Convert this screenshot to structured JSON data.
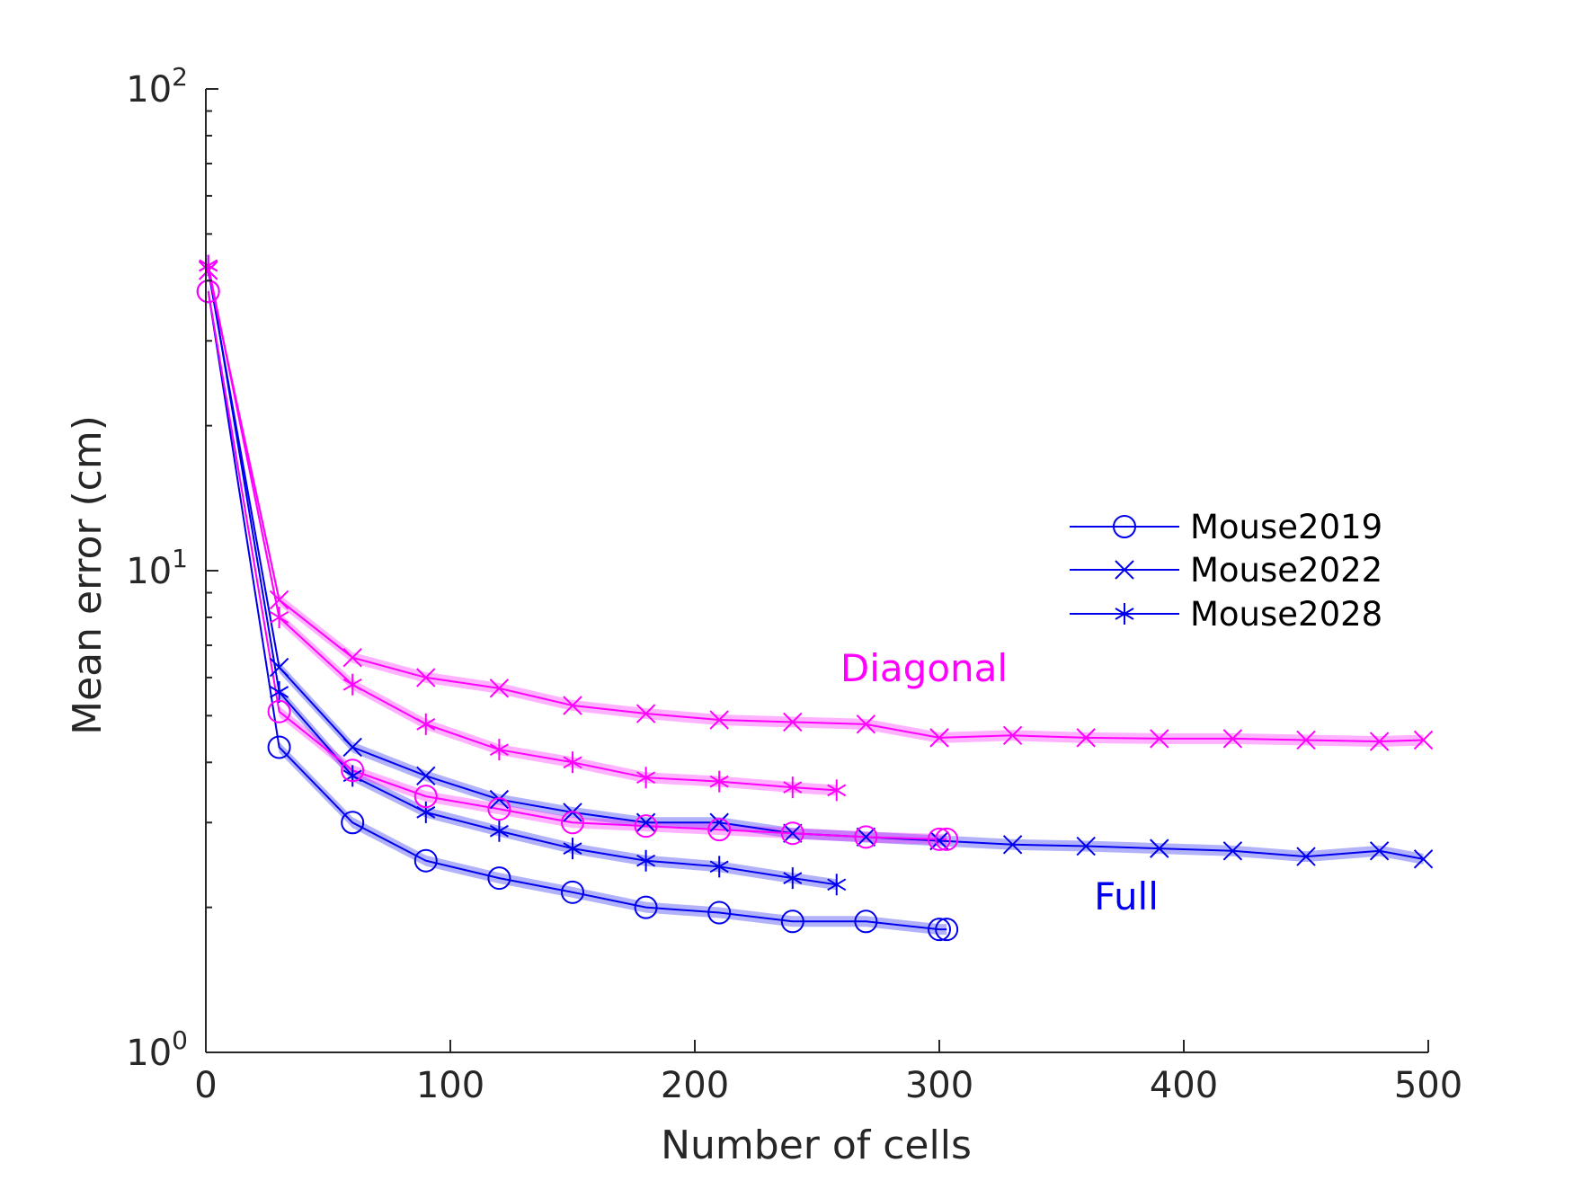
{
  "chart_data": {
    "type": "line",
    "xlabel": "Number of cells",
    "ylabel": "Mean error (cm)",
    "xlim": [
      0,
      500
    ],
    "ylim": [
      1,
      100
    ],
    "yscale": "log",
    "grid": false,
    "legend_position": "right",
    "xticks": [
      "0",
      "100",
      "200",
      "300",
      "400",
      "500"
    ],
    "yticks": [
      {
        "base": "10",
        "exp": "0",
        "value": 1
      },
      {
        "base": "10",
        "exp": "1",
        "value": 10
      },
      {
        "base": "10",
        "exp": "2",
        "value": 100
      }
    ],
    "legend": [
      {
        "label": "Mouse2019",
        "marker": "circle"
      },
      {
        "label": "Mouse2022",
        "marker": "x"
      },
      {
        "label": "Mouse2028",
        "marker": "asterisk"
      }
    ],
    "annotations": [
      {
        "text": "Diagonal",
        "color": "#ff00ff"
      },
      {
        "text": "Full",
        "color": "#0000ee"
      }
    ],
    "colors": {
      "diagonal": "#ff00ff",
      "full": "#0000ee",
      "axis": "#262626"
    },
    "series": [
      {
        "group": "Full",
        "mouse": "Mouse2019",
        "marker": "circle",
        "x": [
          1,
          30,
          60,
          90,
          120,
          150,
          180,
          210,
          240,
          270,
          300,
          303
        ],
        "y": [
          38,
          4.3,
          3.0,
          2.5,
          2.3,
          2.15,
          2.0,
          1.95,
          1.87,
          1.87,
          1.8,
          1.8
        ]
      },
      {
        "group": "Full",
        "mouse": "Mouse2022",
        "marker": "x",
        "x": [
          1,
          30,
          60,
          90,
          120,
          150,
          180,
          210,
          240,
          270,
          300,
          330,
          360,
          390,
          420,
          450,
          480,
          498
        ],
        "y": [
          42,
          6.3,
          4.3,
          3.75,
          3.35,
          3.15,
          3.0,
          3.0,
          2.85,
          2.8,
          2.75,
          2.7,
          2.68,
          2.65,
          2.62,
          2.55,
          2.62,
          2.52
        ]
      },
      {
        "group": "Full",
        "mouse": "Mouse2028",
        "marker": "asterisk",
        "x": [
          1,
          30,
          60,
          90,
          120,
          150,
          180,
          210,
          240,
          258
        ],
        "y": [
          43,
          5.6,
          3.75,
          3.15,
          2.88,
          2.65,
          2.5,
          2.43,
          2.3,
          2.23
        ]
      },
      {
        "group": "Diagonal",
        "mouse": "Mouse2019",
        "marker": "circle",
        "x": [
          1,
          30,
          60,
          90,
          120,
          150,
          180,
          210,
          240,
          270,
          300,
          303
        ],
        "y": [
          38,
          5.1,
          3.85,
          3.4,
          3.2,
          3.0,
          2.95,
          2.9,
          2.85,
          2.8,
          2.77,
          2.77
        ]
      },
      {
        "group": "Diagonal",
        "mouse": "Mouse2022",
        "marker": "x",
        "x": [
          1,
          30,
          60,
          90,
          120,
          150,
          180,
          210,
          240,
          270,
          300,
          330,
          360,
          390,
          420,
          450,
          480,
          498
        ],
        "y": [
          42,
          8.7,
          6.6,
          6.0,
          5.7,
          5.25,
          5.05,
          4.9,
          4.85,
          4.8,
          4.5,
          4.55,
          4.5,
          4.48,
          4.48,
          4.45,
          4.42,
          4.45
        ]
      },
      {
        "group": "Diagonal",
        "mouse": "Mouse2028",
        "marker": "asterisk",
        "x": [
          1,
          30,
          60,
          90,
          120,
          150,
          180,
          210,
          240,
          258
        ],
        "y": [
          43,
          8.0,
          5.8,
          4.8,
          4.25,
          4.0,
          3.72,
          3.65,
          3.55,
          3.5
        ]
      }
    ]
  }
}
